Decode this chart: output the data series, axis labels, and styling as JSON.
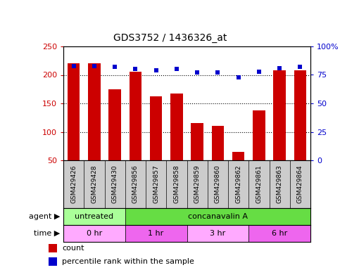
{
  "title": "GDS3752 / 1436326_at",
  "samples": [
    "GSM429426",
    "GSM429428",
    "GSM429430",
    "GSM429856",
    "GSM429857",
    "GSM429858",
    "GSM429859",
    "GSM429860",
    "GSM429862",
    "GSM429861",
    "GSM429863",
    "GSM429864"
  ],
  "counts": [
    220,
    220,
    175,
    205,
    162,
    167,
    115,
    111,
    65,
    138,
    208,
    208
  ],
  "percentiles": [
    83,
    83,
    82,
    80,
    79,
    80,
    77,
    77,
    73,
    78,
    81,
    82
  ],
  "ylim_left": [
    50,
    250
  ],
  "ylim_right": [
    0,
    100
  ],
  "yticks_left": [
    50,
    100,
    150,
    200,
    250
  ],
  "yticks_right": [
    0,
    25,
    50,
    75,
    100
  ],
  "bar_color": "#cc0000",
  "dot_color": "#0000cc",
  "agent_labels": [
    {
      "text": "untreated",
      "start": 0,
      "end": 3,
      "color": "#aaff99"
    },
    {
      "text": "concanavalin A",
      "start": 3,
      "end": 12,
      "color": "#66dd44"
    }
  ],
  "time_labels": [
    {
      "text": "0 hr",
      "start": 0,
      "end": 3,
      "color": "#ffaaff"
    },
    {
      "text": "1 hr",
      "start": 3,
      "end": 6,
      "color": "#ee66ee"
    },
    {
      "text": "3 hr",
      "start": 6,
      "end": 9,
      "color": "#ffaaff"
    },
    {
      "text": "6 hr",
      "start": 9,
      "end": 12,
      "color": "#ee66ee"
    }
  ],
  "label_area_color": "#cccccc",
  "background_color": "#ffffff",
  "fig_width": 4.83,
  "fig_height": 3.84,
  "dpi": 100
}
